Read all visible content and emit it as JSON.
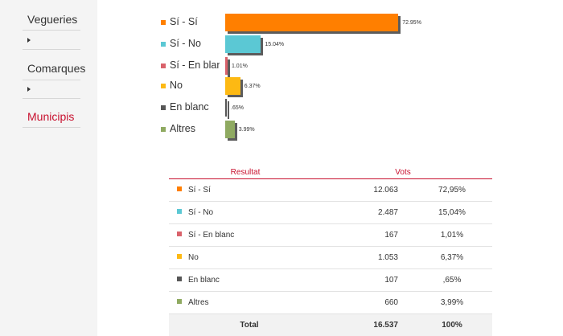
{
  "sidebar": {
    "items": [
      {
        "label": "Vegueries"
      },
      {
        "label": "Comarques"
      },
      {
        "label": "Municipis"
      }
    ]
  },
  "colors": {
    "si_si": "#ff7f00",
    "si_no": "#5bc8d4",
    "si_blanc": "#d9626b",
    "no": "#fdb913",
    "blanc": "#575757",
    "altres": "#8faa61",
    "accent": "#c8102e"
  },
  "chart_data": {
    "type": "bar",
    "orientation": "horizontal",
    "categories": [
      "Sí - Sí",
      "Sí - No",
      "Sí - En blanc",
      "No",
      "En blanc",
      "Altres"
    ],
    "values": [
      72.95,
      15.04,
      1.01,
      6.37,
      0.65,
      3.99
    ],
    "value_labels": [
      "72.95%",
      "15.04%",
      "1.01%",
      "6.37%",
      ".65%",
      "3.99%"
    ],
    "xlim": [
      0,
      100
    ]
  },
  "table": {
    "headers": {
      "result": "Resultat",
      "votes": "Vots"
    },
    "rows": [
      {
        "name": "Sí - Sí",
        "votes": "12.063",
        "pct": "72,95%"
      },
      {
        "name": "Sí - No",
        "votes": "2.487",
        "pct": "15,04%"
      },
      {
        "name": "Sí - En blanc",
        "votes": "167",
        "pct": "1,01%"
      },
      {
        "name": "No",
        "votes": "1.053",
        "pct": "6,37%"
      },
      {
        "name": "En blanc",
        "votes": "107",
        "pct": ",65%"
      },
      {
        "name": "Altres",
        "votes": "660",
        "pct": "3,99%"
      }
    ],
    "total": {
      "label": "Total",
      "votes": "16.537",
      "pct": "100%"
    }
  }
}
